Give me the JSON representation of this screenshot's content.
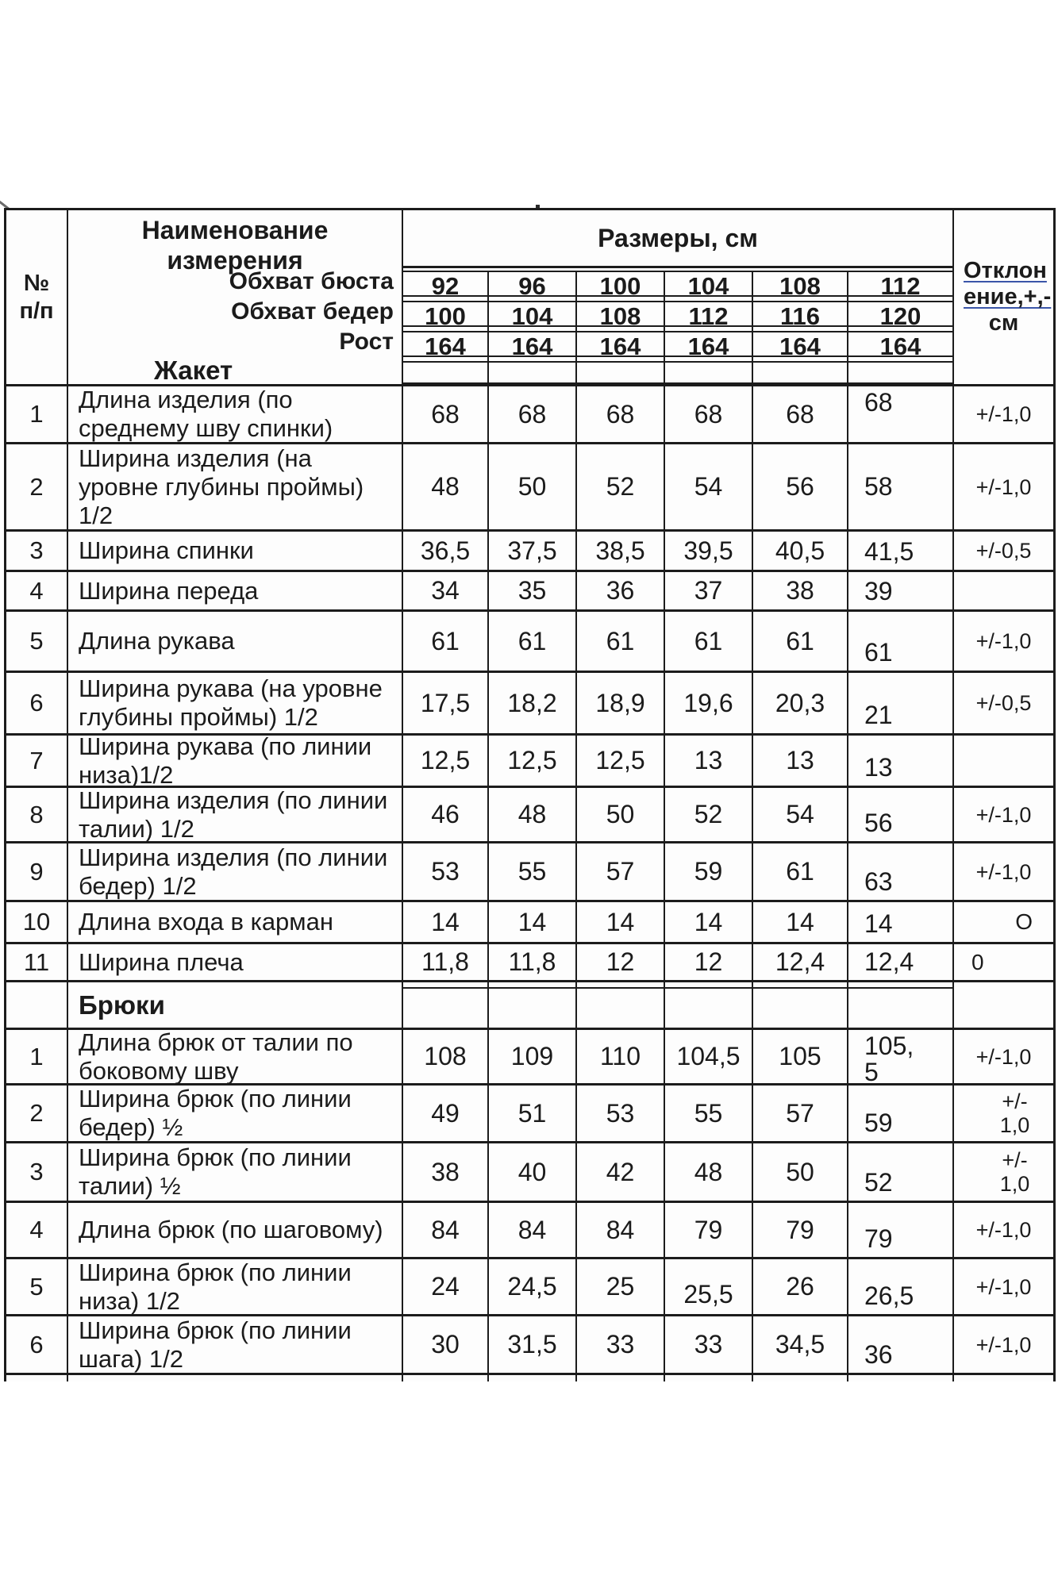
{
  "colors": {
    "ink": "#1b1b1b",
    "border": "#1c1c1c",
    "underline_accent": "#3a55a8",
    "background": "#ffffff"
  },
  "document": {
    "header": {
      "no_label": "№\nп/п",
      "name_title": "Наименование\nизмерения",
      "sizes_title": "Размеры, см",
      "deviation_lines": [
        "Отклон",
        "ение,+,-",
        "см"
      ],
      "param_rows": [
        {
          "label": "Обхват бюста",
          "values": [
            "92",
            "96",
            "100",
            "104",
            "108",
            "112"
          ]
        },
        {
          "label": "Обхват бедер",
          "values": [
            "100",
            "104",
            "108",
            "112",
            "116",
            "120"
          ]
        },
        {
          "label": "Рост",
          "values": [
            "164",
            "164",
            "164",
            "164",
            "164",
            "164"
          ]
        },
        {
          "label": "",
          "values": [
            "",
            "",
            "",
            "",
            "",
            ""
          ]
        }
      ]
    },
    "sections": [
      {
        "title": "Жакет",
        "rows": [
          {
            "no": "1",
            "name": "Длина изделия (по\nсреднему шву спинки)",
            "values": [
              "68",
              "68",
              "68",
              "68",
              "68",
              "68"
            ],
            "deviation": "+/-1,0"
          },
          {
            "no": "2",
            "name": "Ширина изделия (на\nуровне глубины проймы)\n1/2",
            "values": [
              "48",
              "50",
              "52",
              "54",
              "56",
              "58"
            ],
            "deviation": "+/-1,0"
          },
          {
            "no": "3",
            "name": "Ширина спинки",
            "values": [
              "36,5",
              "37,5",
              "38,5",
              "39,5",
              "40,5",
              "41,5"
            ],
            "deviation": "+/-0,5"
          },
          {
            "no": "4",
            "name": "Ширина переда",
            "values": [
              "34",
              "35",
              "36",
              "37",
              "38",
              "39"
            ],
            "deviation": ""
          },
          {
            "no": "5",
            "name": "Длина рукава",
            "values": [
              "61",
              "61",
              "61",
              "61",
              "61",
              "61"
            ],
            "deviation": "+/-1,0"
          },
          {
            "no": "6",
            "name": "Ширина рукава (на уровне\nглубины проймы) 1/2",
            "values": [
              "17,5",
              "18,2",
              "18,9",
              "19,6",
              "20,3",
              "21"
            ],
            "deviation": "+/-0,5"
          },
          {
            "no": "7",
            "name": "Ширина рукава (по линии\nниза)1/2",
            "values": [
              "12,5",
              "12,5",
              "12,5",
              "13",
              "13",
              "13"
            ],
            "deviation": ""
          },
          {
            "no": "8",
            "name": "Ширина изделия (по линии\nталии) 1/2",
            "values": [
              "46",
              "48",
              "50",
              "52",
              "54",
              "56"
            ],
            "deviation": "+/-1,0"
          },
          {
            "no": "9",
            "name": "Ширина изделия (по линии\nбедер) 1/2",
            "values": [
              "53",
              "55",
              "57",
              "59",
              "61",
              "63"
            ],
            "deviation": "+/-1,0"
          },
          {
            "no": "10",
            "name": "Длина входа в карман",
            "values": [
              "14",
              "14",
              "14",
              "14",
              "14",
              "14"
            ],
            "deviation": "О"
          },
          {
            "no": "11",
            "name": "Ширина плеча",
            "values": [
              "11,8",
              "11,8",
              "12",
              "12",
              "12,4",
              "12,4"
            ],
            "deviation": "0"
          }
        ]
      },
      {
        "title": "Брюки",
        "rows": [
          {
            "no": "1",
            "name": "Длина брюк от талии по\nбоковому шву",
            "values": [
              "108",
              "109",
              "110",
              "104,5",
              "105",
              "105,\n5"
            ],
            "deviation": "+/-1,0"
          },
          {
            "no": "2",
            "name": "Ширина брюк (по линии\nбедер) ½",
            "values": [
              "49",
              "51",
              "53",
              "55",
              "57",
              "59"
            ],
            "deviation": "+/-\n1,0"
          },
          {
            "no": "3",
            "name": "Ширина брюк (по линии\nталии) ½",
            "values": [
              "38",
              "40",
              "42",
              "48",
              "50",
              "52"
            ],
            "deviation": "+/-\n1,0"
          },
          {
            "no": "4",
            "name": "Длина брюк (по шаговому)",
            "values": [
              "84",
              "84",
              "84",
              "79",
              "79",
              "79"
            ],
            "deviation": "+/-1,0"
          },
          {
            "no": "5",
            "name": "Ширина брюк (по линии\nниза) 1/2",
            "values": [
              "24",
              "24,5",
              "25",
              "25,5",
              "26",
              "26,5"
            ],
            "deviation": "+/-1,0"
          },
          {
            "no": "6",
            "name": "Ширина брюк (по линии\nшага) 1/2",
            "values": [
              "30",
              "31,5",
              "33",
              "33",
              "34,5",
              "36"
            ],
            "deviation": "+/-1,0"
          }
        ]
      }
    ]
  }
}
